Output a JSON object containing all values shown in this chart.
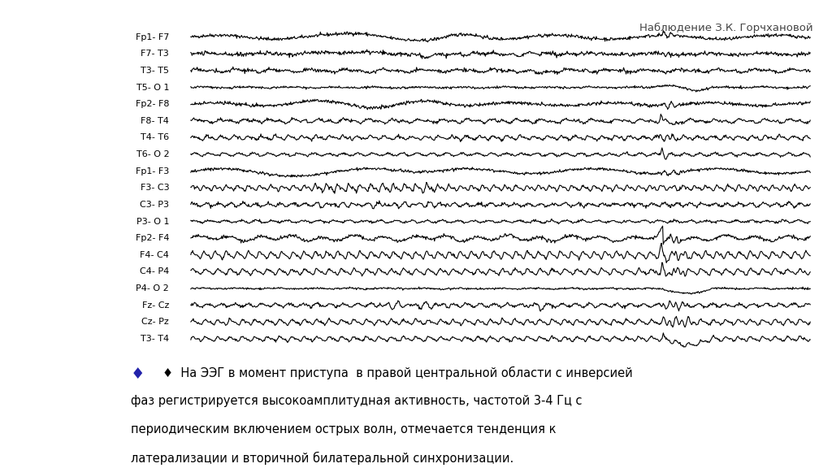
{
  "title": "Наблюдение З.К. Горчхановой",
  "channels": [
    "Fp1- F7",
    "F7- T3",
    "T3- T5",
    "T5- O 1",
    "Fp2- F8",
    "F8- T4",
    "T4- T6",
    "T6- O 2",
    "Fp1- F3",
    "F3- C3",
    "C3- P3",
    "P3- O 1",
    "Fp2- F4",
    "F4- C4",
    "C4- P4",
    "P4- O 2",
    "Fz- Cz",
    "Cz- Pz",
    "T3- T4"
  ],
  "annotation_line1": "♦  На ЭЭГ в момент приступа  в правой центральной области с инверсией",
  "annotation_line2": "фаз регистрируется высокоамплитудная активность, частотой 3-4 Гц с",
  "annotation_line3": "периодическим включением острых волн, отмечается тенденция к",
  "annotation_line4": "латерализации и вторичной билатеральной синхронизации.",
  "bg_color": "#ffffff",
  "line_color": "#000000",
  "text_color": "#000000",
  "title_color": "#444444",
  "annotation_diamond_color": "#2222aa"
}
